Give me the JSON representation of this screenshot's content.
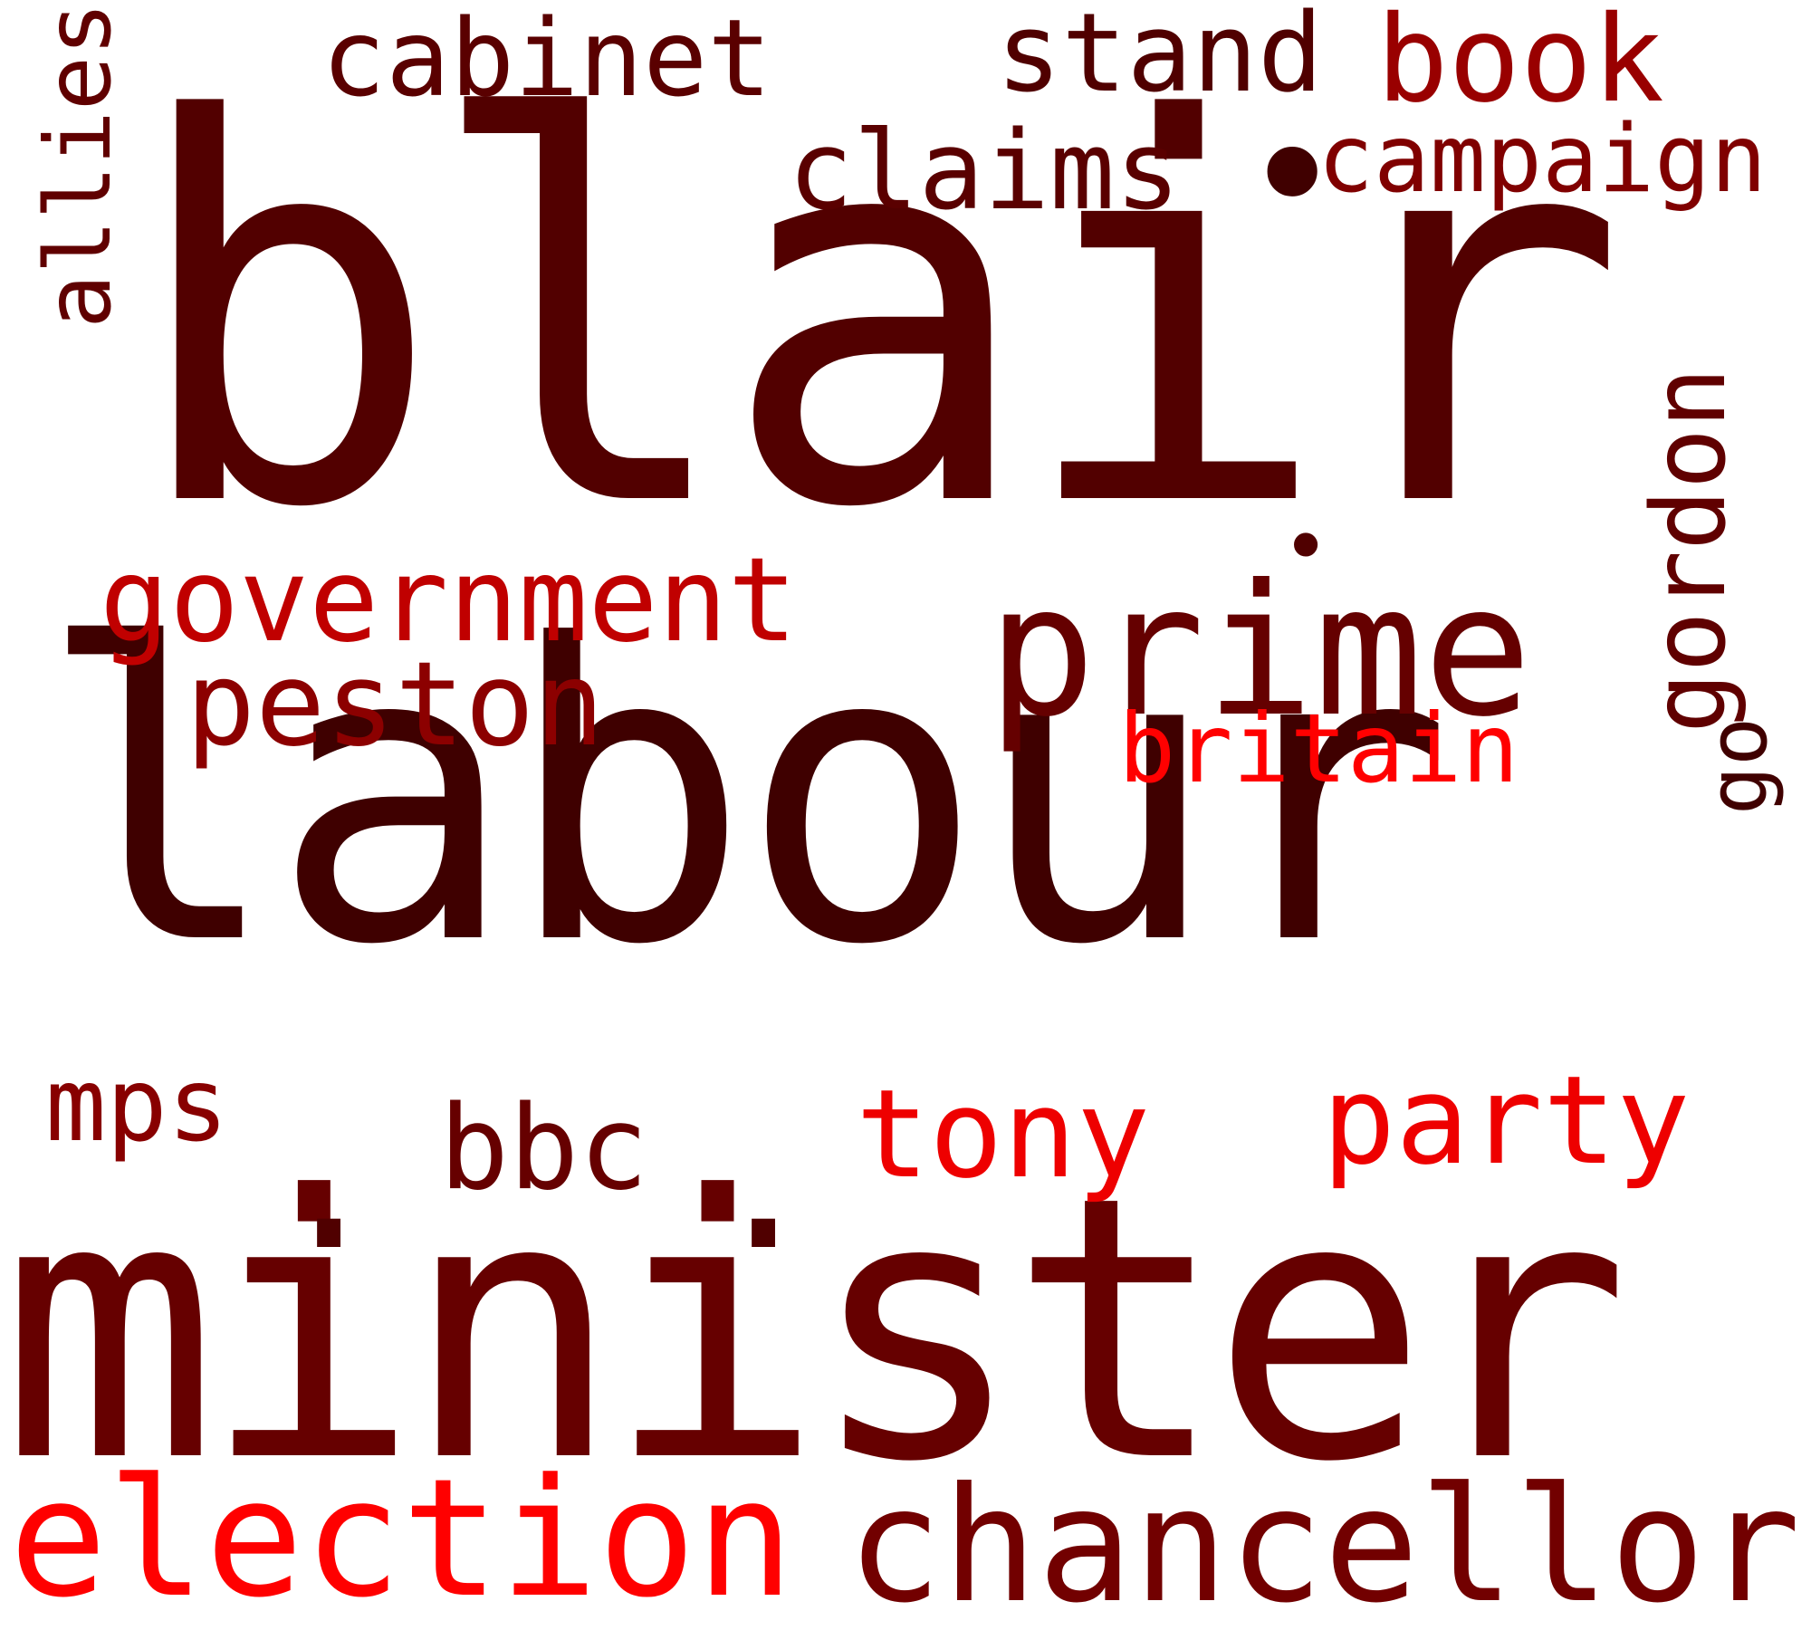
{
  "words": {
    "blair": {
      "text": "blair",
      "color": "#520000"
    },
    "labour": {
      "text": "labour",
      "color": "#3f0000"
    },
    "minister": {
      "text": "minister",
      "color": "#660000"
    },
    "election": {
      "text": "election",
      "color": "#ff0000"
    },
    "chancellor": {
      "text": "chancellor",
      "color": "#720000"
    },
    "prime": {
      "text": "prime",
      "color": "#650000"
    },
    "government": {
      "text": "government",
      "color": "#c00000"
    },
    "peston": {
      "text": "peston",
      "color": "#8c0000"
    },
    "cabinet": {
      "text": "cabinet",
      "color": "#5a0000"
    },
    "stand": {
      "text": "stand",
      "color": "#500000"
    },
    "book": {
      "text": "book",
      "color": "#990000"
    },
    "claims": {
      "text": "claims",
      "color": "#5a0000"
    },
    "dot_1": {
      "text": "•",
      "color": "#400000"
    },
    "campaign": {
      "text": "campaign",
      "color": "#800000"
    },
    "allies": {
      "text": "allies",
      "color": "#600000"
    },
    "gordon": {
      "text": "gordon",
      "color": "#600000"
    },
    "go": {
      "text": "go",
      "color": "#400000"
    },
    "britain": {
      "text": "britain",
      "color": "#ff0000"
    },
    "mps": {
      "text": "mps",
      "color": "#880000"
    },
    "bbc": {
      "text": "bbc",
      "color": "#660000"
    },
    "tony": {
      "text": "tony",
      "color": "#ee0000"
    },
    "party": {
      "text": "party",
      "color": "#ee0000"
    },
    "dot_2": {
      "text": ".",
      "color": "#500000"
    },
    "dot_3": {
      "text": ".",
      "color": "#500000"
    },
    "dot_4": {
      "text": "•",
      "color": "#500000"
    }
  }
}
